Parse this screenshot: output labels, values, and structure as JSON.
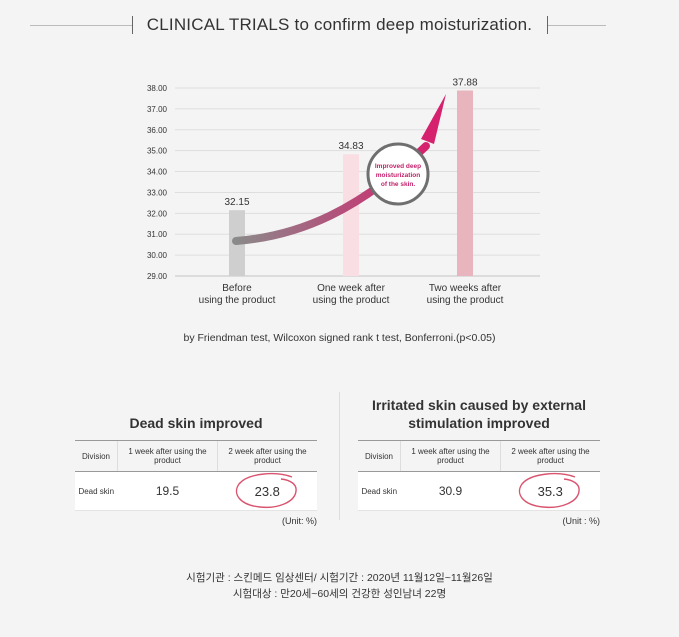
{
  "header": {
    "title": "CLINICAL TRIALS to confirm deep moisturization."
  },
  "chart_data": {
    "type": "bar",
    "categories": [
      [
        "Before",
        "using the product"
      ],
      [
        "One week after",
        "using the product"
      ],
      [
        "Two weeks after",
        "using the product"
      ]
    ],
    "values": [
      32.15,
      34.83,
      37.88
    ],
    "value_labels": [
      "32.15",
      "34.83",
      "37.88"
    ],
    "bar_colors": [
      "#cfcfcf",
      "#f9dfe4",
      "#e8b5be"
    ],
    "ylim": [
      29.0,
      38.0
    ],
    "yticks": [
      "29.00",
      "30.00",
      "31.00",
      "32.00",
      "33.00",
      "34.00",
      "35.00",
      "36.00",
      "37.00",
      "38.00"
    ],
    "grid": true,
    "annotation": [
      "Improved deep",
      "moisturization",
      "of the skin."
    ],
    "arrow_color_start": "#8a8a8a",
    "arrow_color_end": "#d6216e"
  },
  "test_note": "by Friendman test, Wilcoxon signed rank t test, Bonferroni.(p<0.05)",
  "tables": [
    {
      "title": "Dead skin improved",
      "headers": [
        "Division",
        "1 week after using the product",
        "2 week after using the product"
      ],
      "row_label": "Dead skin",
      "week1": "19.5",
      "week2": "23.8",
      "unit": "(Unit: %)"
    },
    {
      "title": "Irritated skin caused by external stimulation improved",
      "headers": [
        "Division",
        "1 week after using the product",
        "2 week after using the product"
      ],
      "row_label": "Dead skin",
      "week1": "30.9",
      "week2": "35.3",
      "unit": "(Unit : %)"
    }
  ],
  "footer": {
    "line1": "시험기관 : 스킨메드 임상센터/ 시험기간 : 2020년 11월12일~11월26일",
    "line2": "시험대상 : 만20세~60세의 건강한 성인남녀 22명"
  },
  "accent_circle_color": "#d9546f"
}
